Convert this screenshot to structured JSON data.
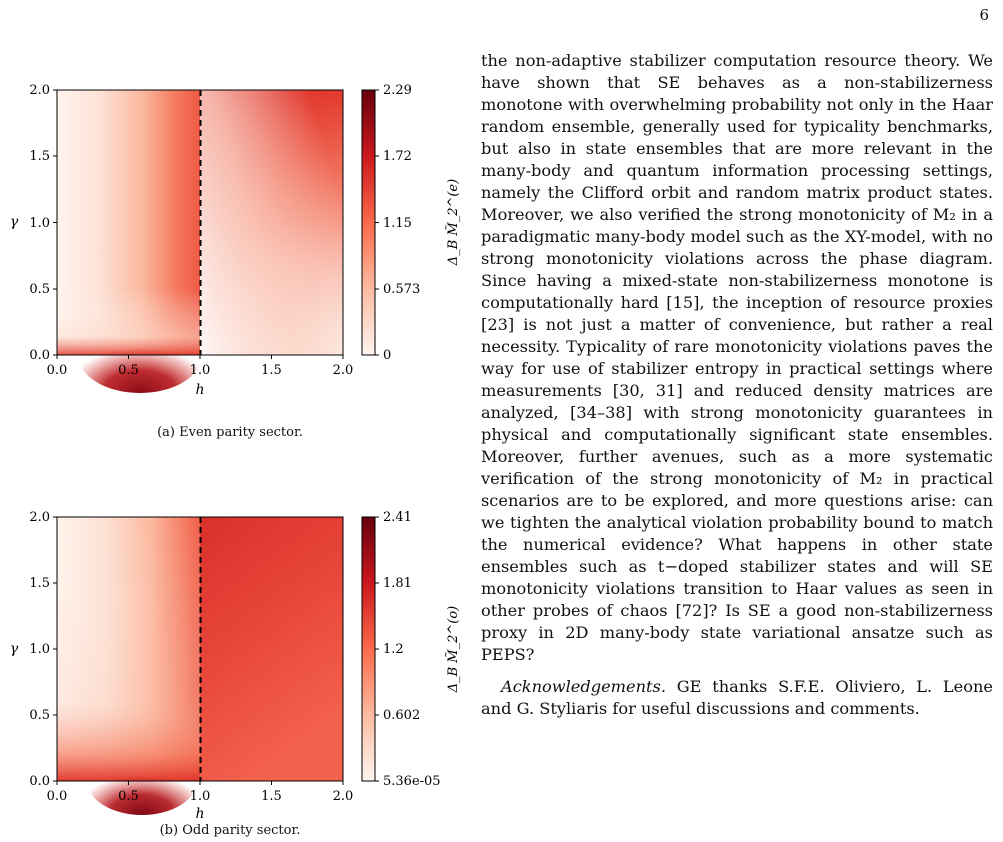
{
  "page": {
    "number": "6"
  },
  "figures": [
    {
      "id": "a",
      "caption": "(a) Even parity sector.",
      "chart_data": {
        "type": "heatmap",
        "title": "",
        "xlabel": "h",
        "ylabel": "γ",
        "xlim": [
          0.0,
          2.0
        ],
        "ylim": [
          0.0,
          2.0
        ],
        "xticks": [
          "0.0",
          "0.5",
          "1.0",
          "1.5",
          "2.0"
        ],
        "yticks": [
          "0.0",
          "0.5",
          "1.0",
          "1.5",
          "2.0"
        ],
        "colorbar_label": "Δ_B M̃_2^(e)",
        "colorbar_ticks": [
          "2.29",
          "1.72",
          "1.15",
          "0.573",
          "0"
        ],
        "colorbar_range": [
          0,
          2.29
        ],
        "critical_line_h": 1.0,
        "colormap": "Reds"
      }
    },
    {
      "id": "b",
      "caption": "(b) Odd parity sector.",
      "chart_data": {
        "type": "heatmap",
        "title": "",
        "xlabel": "h",
        "ylabel": "γ",
        "xlim": [
          0.0,
          2.0
        ],
        "ylim": [
          0.0,
          2.0
        ],
        "xticks": [
          "0.0",
          "0.5",
          "1.0",
          "1.5",
          "2.0"
        ],
        "yticks": [
          "0.0",
          "0.5",
          "1.0",
          "1.5",
          "2.0"
        ],
        "colorbar_label": "Δ_B M̃_2^(o)",
        "colorbar_ticks": [
          "2.41",
          "1.81",
          "1.2",
          "0.602",
          "5.36e-05"
        ],
        "colorbar_range": [
          5.36e-05,
          2.41
        ],
        "critical_line_h": 1.0,
        "colormap": "Reds"
      }
    }
  ],
  "body": {
    "paragraph1": "the non-adaptive stabilizer computation resource theory. We have shown that SE behaves as a non-stabilizerness monotone with overwhelming probability not only in the Haar random ensemble, generally used for typicality benchmarks, but also in state ensembles that are more relevant in the many-body and quantum information processing settings, namely the Clifford orbit and random matrix product states. Moreover, we also verified the strong monotonicity of M₂ in a paradigmatic many-body model such as the XY-model, with no strong monotonicity violations across the phase diagram. Since having a mixed-state non-stabilizerness monotone is computationally hard [15], the inception of resource proxies [23] is not just a matter of convenience, but rather a real necessity. Typicality of rare monotonicity violations paves the way for use of stabilizer entropy in practical settings where measurements [30, 31] and reduced density matrices are analyzed, [34–38] with strong monotonicity guarantees in physical and computationally significant state ensembles. Moreover, further avenues, such as a more systematic verification of the strong monotonicity of M₂ in practical scenarios are to be explored, and more questions arise: can we tighten the analytical violation probability bound to match the numerical evidence? What happens in other state ensembles such as t−doped stabilizer states and will SE monotonicity violations transition to Haar values as seen in other probes of chaos [72]? Is SE a good non-stabilizerness proxy in 2D many-body state variational ansatze such as PEPS?",
    "ack_title": "Acknowledgements.",
    "ack_text": " GE thanks S.F.E. Oliviero, L. Leone and G. Styliaris for useful discussions and comments."
  }
}
